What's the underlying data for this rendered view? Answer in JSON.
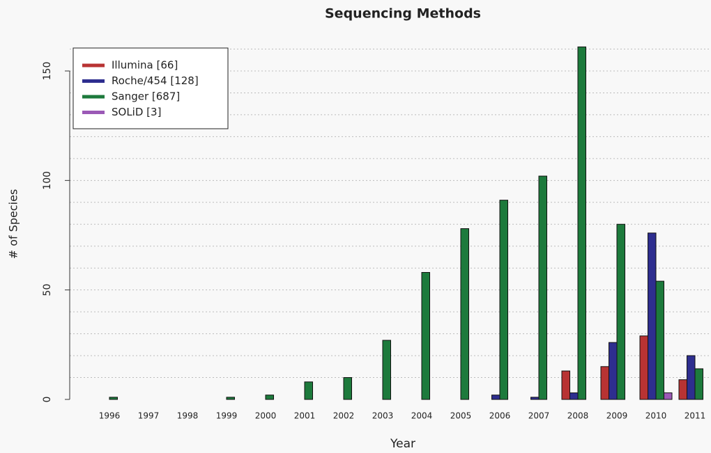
{
  "chart_data": {
    "type": "grouped_bar",
    "title": "Sequencing Methods",
    "x_label": "Year",
    "y_label": "# of Species",
    "categories": [
      "1996",
      "1997",
      "1998",
      "1999",
      "2000",
      "2001",
      "2002",
      "2003",
      "2004",
      "2005",
      "2006",
      "2007",
      "2008",
      "2009",
      "2010",
      "2011"
    ],
    "series": [
      {
        "name": "Illumina [66]",
        "color": "#b83333",
        "values": [
          0,
          0,
          0,
          0,
          0,
          0,
          0,
          0,
          0,
          0,
          0,
          0,
          13,
          15,
          29,
          9
        ]
      },
      {
        "name": "Roche/454 [128]",
        "color": "#2e2e8f",
        "values": [
          0,
          0,
          0,
          0,
          0,
          0,
          0,
          0,
          0,
          0,
          2,
          1,
          3,
          26,
          76,
          20
        ]
      },
      {
        "name": "Sanger [687]",
        "color": "#1d7a3c",
        "values": [
          1,
          0,
          0,
          1,
          2,
          8,
          10,
          27,
          58,
          78,
          91,
          102,
          161,
          80,
          54,
          14
        ]
      },
      {
        "name": "SOLiD [3]",
        "color": "#9b59b6",
        "values": [
          0,
          0,
          0,
          0,
          0,
          0,
          0,
          0,
          0,
          0,
          0,
          0,
          0,
          0,
          3,
          0
        ]
      }
    ],
    "ylim": [
      0,
      165
    ],
    "yticks": [
      0,
      50,
      100,
      150
    ],
    "grid_lines": [
      10,
      20,
      30,
      40,
      50,
      60,
      70,
      80,
      90,
      100,
      110,
      120,
      130,
      140,
      150,
      160
    ],
    "grid": true,
    "legend": "top-left"
  }
}
